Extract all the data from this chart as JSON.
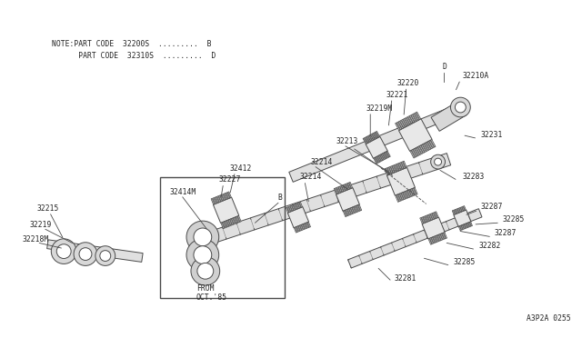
{
  "bg_color": "#ffffff",
  "line_color": "#4a4a4a",
  "text_color": "#222222",
  "fig_width": 6.4,
  "fig_height": 3.72,
  "note_line1": "NOTE:PART CODE  32200S  .........  B",
  "note_line2": "      PART CODE  32310S  .........  D",
  "diagram_label": "A3P2A 0255",
  "label_fs": 5.8
}
